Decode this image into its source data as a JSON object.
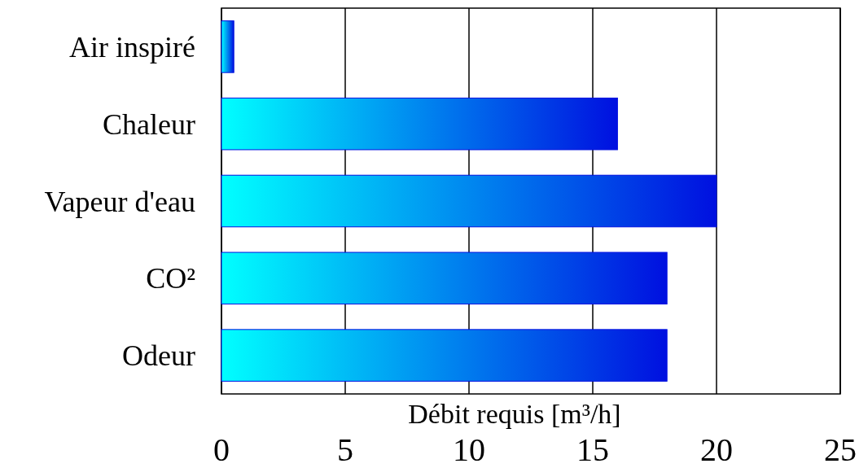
{
  "chart_data": {
    "type": "bar",
    "orientation": "horizontal",
    "categories": [
      "Air inspiré",
      "Chaleur",
      "Vapeur d'eau",
      "CO²",
      "Odeur"
    ],
    "series": [
      {
        "color": "#0010e0",
        "values": [
          0.5,
          16,
          20,
          18,
          18
        ]
      }
    ],
    "xlabel": "Débit requis [m³/h]",
    "xlim": [
      0,
      25
    ],
    "xticks": [
      0,
      5,
      10,
      15,
      20,
      25
    ],
    "grid": "x"
  }
}
